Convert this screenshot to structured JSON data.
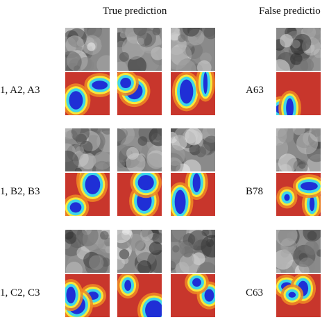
{
  "headers": {
    "true_prediction": "True prediction",
    "false_prediction": "False predictio"
  },
  "rows": [
    {
      "left_label": "1, A2, A3",
      "right_label": "A63"
    },
    {
      "left_label": "1, B2, B3",
      "right_label": "B78"
    },
    {
      "left_label": "1, C2, C3",
      "right_label": "C63"
    }
  ],
  "colors": {
    "heat_red": "#c8362c",
    "heat_orange": "#f08a24",
    "heat_yellow": "#f6e83a",
    "heat_cyan": "#3fd6e8",
    "heat_blue": "#1f2fd6"
  }
}
